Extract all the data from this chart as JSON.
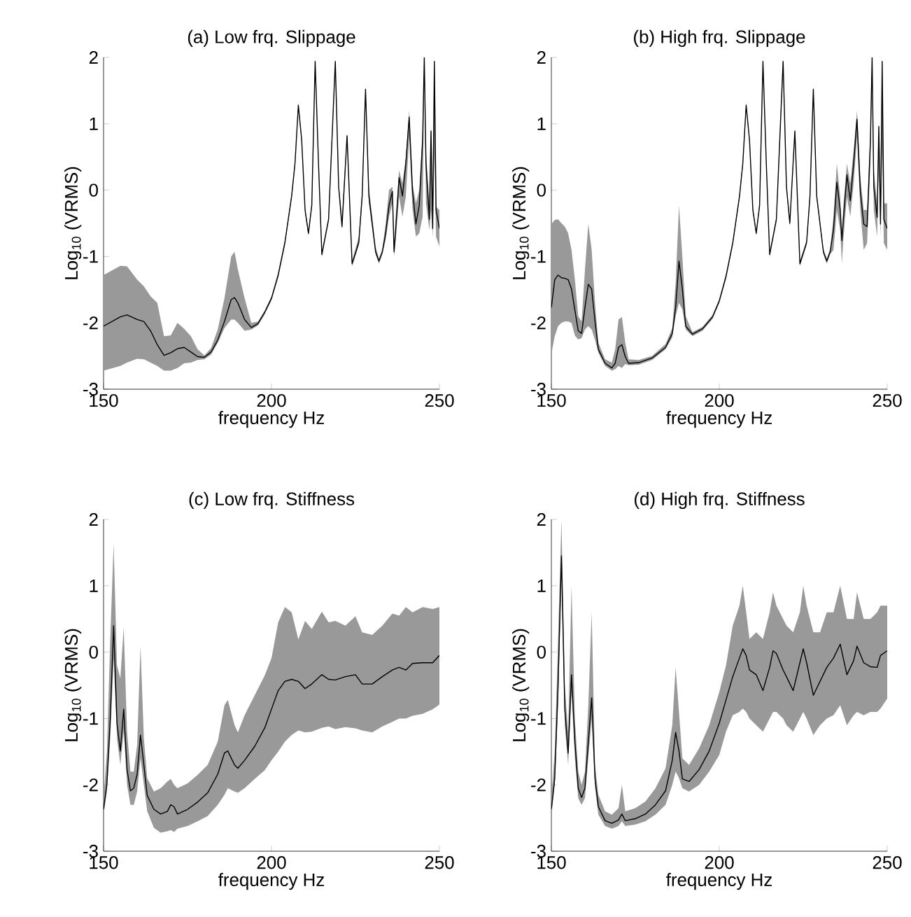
{
  "chart_data": [
    {
      "type": "line",
      "title": "(a) Low frq. Slippage",
      "xlabel": "frequency Hz",
      "ylabel": "Log$_{10}$ (VRMS)",
      "xlim": [
        150,
        250
      ],
      "ylim": [
        -3,
        2
      ],
      "xticks": [
        150,
        200,
        250
      ],
      "yticks": [
        -3,
        -2,
        -1,
        0,
        1,
        2
      ],
      "series": [
        {
          "color": "#000000",
          "x": [
            150,
            155,
            157,
            160,
            162,
            164,
            166,
            168,
            170,
            172,
            174,
            176,
            178,
            180,
            182,
            184,
            186,
            188,
            189,
            190,
            192,
            194,
            196,
            198,
            200,
            202,
            204,
            206,
            207,
            208,
            209,
            210,
            211,
            212,
            213,
            214,
            215,
            217,
            218,
            219,
            220,
            221,
            222.5,
            224,
            226,
            227,
            228,
            229,
            231,
            232,
            233,
            234,
            235,
            236,
            236.5,
            237,
            238,
            239,
            240,
            241,
            242,
            243,
            244,
            245,
            245.5,
            246,
            247,
            247.5,
            248,
            248.5,
            249,
            250
          ],
          "values": [
            -2.05,
            -1.91,
            -1.88,
            -1.95,
            -1.98,
            -2.12,
            -2.33,
            -2.49,
            -2.45,
            -2.39,
            -2.37,
            -2.44,
            -2.51,
            -2.52,
            -2.44,
            -2.26,
            -1.98,
            -1.65,
            -1.62,
            -1.7,
            -1.95,
            -2.07,
            -2.01,
            -1.84,
            -1.63,
            -1.28,
            -0.79,
            -0.09,
            0.4,
            1.28,
            0.75,
            -0.3,
            -0.65,
            -0.23,
            1.94,
            0.4,
            -0.97,
            -0.44,
            0.75,
            1.94,
            0.05,
            -0.55,
            0.82,
            -1.11,
            -0.79,
            -0.09,
            1.52,
            -0.09,
            -0.93,
            -1.07,
            -0.93,
            -0.65,
            -0.23,
            -0.02,
            -0.93,
            -0.58,
            0.19,
            -0.09,
            0.4,
            1.1,
            -0.02,
            -0.51,
            -0.23,
            0.75,
            2.0,
            0.4,
            -0.44,
            0.89,
            -0.58,
            1.94,
            -0.3,
            -0.58
          ],
          "lower": [
            -2.72,
            -2.65,
            -2.6,
            -2.54,
            -2.55,
            -2.6,
            -2.65,
            -2.72,
            -2.72,
            -2.68,
            -2.61,
            -2.6,
            -2.56,
            -2.55,
            -2.48,
            -2.3,
            -2.08,
            -1.95,
            -1.95,
            -2.0,
            -2.12,
            -2.1,
            -2.04,
            -1.87,
            -1.66,
            -1.32,
            -0.83,
            -0.13,
            0.36,
            1.24,
            0.71,
            -0.34,
            -0.69,
            -0.27,
            1.9,
            0.36,
            -1.01,
            -0.48,
            0.71,
            1.9,
            0.01,
            -0.59,
            0.78,
            -1.15,
            -0.83,
            -0.13,
            1.48,
            -0.2,
            -0.97,
            -1.11,
            -0.97,
            -0.75,
            -0.4,
            -0.2,
            -1.0,
            -0.75,
            -0.1,
            -0.4,
            -0.1,
            0.8,
            -0.3,
            -0.7,
            -0.65,
            -0.4,
            1.9,
            -0.2,
            -0.6,
            -0.3,
            -0.7,
            0.5,
            -0.7,
            -0.85
          ],
          "upper": [
            -1.28,
            -1.14,
            -1.15,
            -1.35,
            -1.45,
            -1.6,
            -1.7,
            -2.2,
            -2.19,
            -2.0,
            -2.09,
            -2.2,
            -2.4,
            -2.49,
            -2.38,
            -2.1,
            -1.63,
            -1.0,
            -0.93,
            -1.2,
            -1.63,
            -2.0,
            -1.98,
            -1.81,
            -1.6,
            -1.24,
            -0.75,
            -0.05,
            0.44,
            1.32,
            0.79,
            -0.26,
            -0.61,
            -0.19,
            1.98,
            0.44,
            -0.93,
            -0.4,
            0.85,
            1.98,
            0.09,
            -0.4,
            0.86,
            -1.07,
            -0.7,
            0.0,
            1.56,
            0.05,
            -0.85,
            -1.03,
            -0.89,
            -0.5,
            0.0,
            0.05,
            -0.8,
            -0.4,
            0.3,
            0.1,
            0.5,
            1.2,
            0.1,
            -0.2,
            0.0,
            0.9,
            2.0,
            0.6,
            -0.2,
            1.0,
            -0.3,
            1.98,
            -0.25,
            -0.3
          ]
        }
      ]
    },
    {
      "type": "line",
      "title": "(b) High frq. Slippage",
      "xlabel": "frequency Hz",
      "ylabel": "Log$_{10}$ (VRMS)",
      "xlim": [
        150,
        250
      ],
      "ylim": [
        -3,
        2
      ],
      "xticks": [
        150,
        200,
        250
      ],
      "yticks": [
        -3,
        -2,
        -1,
        0,
        1,
        2
      ],
      "series": [
        {
          "color": "#000000",
          "x": [
            150,
            151,
            152,
            153,
            154,
            155,
            156,
            157,
            158,
            159,
            160,
            161,
            162,
            163,
            164,
            166,
            168,
            169,
            170,
            171,
            172,
            173,
            176,
            180,
            184,
            186,
            187,
            188,
            189,
            190,
            192,
            195,
            198,
            200,
            202,
            204,
            206,
            207,
            208,
            209,
            210,
            211,
            212,
            213,
            214,
            215,
            217,
            218,
            219,
            220,
            221,
            222.5,
            224,
            226,
            227,
            228,
            229,
            231,
            232,
            233,
            234,
            235,
            236,
            236.5,
            237,
            238,
            239,
            240,
            241,
            242,
            243,
            244,
            245,
            245.5,
            246,
            247,
            247.5,
            248,
            248.5,
            249,
            250
          ],
          "values": [
            -1.77,
            -1.35,
            -1.28,
            -1.32,
            -1.33,
            -1.35,
            -1.49,
            -1.81,
            -2.12,
            -2.16,
            -1.77,
            -1.42,
            -1.49,
            -1.98,
            -2.4,
            -2.61,
            -2.68,
            -2.61,
            -2.37,
            -2.33,
            -2.51,
            -2.61,
            -2.6,
            -2.53,
            -2.37,
            -2.16,
            -1.77,
            -1.07,
            -1.49,
            -2.05,
            -2.17,
            -2.09,
            -1.91,
            -1.67,
            -1.3,
            -0.8,
            -0.1,
            0.4,
            1.28,
            0.75,
            -0.3,
            -0.65,
            -0.23,
            1.94,
            0.4,
            -0.97,
            -0.44,
            0.75,
            1.94,
            0.05,
            -0.5,
            0.89,
            -1.11,
            -0.79,
            -0.09,
            1.52,
            -0.09,
            -0.93,
            -1.07,
            -0.93,
            -0.6,
            0.12,
            -0.3,
            -0.76,
            -0.4,
            0.23,
            -0.16,
            0.4,
            1.07,
            -0.02,
            -0.51,
            -0.55,
            0.75,
            2.0,
            0.05,
            -0.41,
            0.96,
            -0.51,
            1.94,
            -0.44,
            -0.58
          ],
          "lower": [
            -2.47,
            -2.2,
            -2.05,
            -2.0,
            -1.98,
            -1.98,
            -2.0,
            -2.19,
            -2.25,
            -2.23,
            -2.1,
            -2.05,
            -2.1,
            -2.26,
            -2.45,
            -2.65,
            -2.72,
            -2.7,
            -2.65,
            -2.68,
            -2.62,
            -2.64,
            -2.63,
            -2.56,
            -2.4,
            -2.22,
            -1.9,
            -1.7,
            -1.8,
            -2.1,
            -2.2,
            -2.12,
            -1.94,
            -1.7,
            -1.34,
            -0.84,
            -0.14,
            0.36,
            1.24,
            0.71,
            -0.34,
            -0.69,
            -0.27,
            1.9,
            0.36,
            -1.01,
            -0.48,
            0.71,
            1.9,
            0.01,
            -0.54,
            0.85,
            -1.15,
            -0.83,
            -0.13,
            1.48,
            -0.13,
            -0.97,
            -1.11,
            -0.97,
            -0.9,
            -0.3,
            -0.6,
            -1.1,
            -0.7,
            -0.1,
            -0.4,
            0.1,
            0.8,
            -0.3,
            -0.9,
            -0.8,
            0.4,
            1.9,
            -0.3,
            -0.7,
            0.5,
            -0.7,
            0.6,
            -0.8,
            -0.9
          ],
          "upper": [
            -0.51,
            -0.45,
            -0.44,
            -0.5,
            -0.55,
            -0.65,
            -0.9,
            -1.35,
            -1.9,
            -1.98,
            -1.2,
            -0.51,
            -0.9,
            -1.7,
            -2.3,
            -2.55,
            -2.6,
            -2.4,
            -1.95,
            -1.91,
            -2.3,
            -2.55,
            -2.56,
            -2.5,
            -2.32,
            -2.08,
            -1.4,
            -0.23,
            -1.0,
            -1.9,
            -2.14,
            -2.06,
            -1.88,
            -1.64,
            -1.26,
            -0.76,
            -0.06,
            0.44,
            1.32,
            0.79,
            -0.26,
            -0.61,
            -0.19,
            1.98,
            0.44,
            -0.93,
            -0.4,
            0.85,
            1.98,
            0.09,
            -0.46,
            0.93,
            -1.07,
            -0.75,
            -0.05,
            1.56,
            -0.05,
            -0.89,
            -1.03,
            -0.89,
            -0.4,
            0.4,
            -0.1,
            -0.6,
            -0.2,
            0.4,
            0.1,
            0.6,
            1.2,
            0.2,
            -0.3,
            -0.3,
            0.9,
            2.0,
            0.3,
            -0.2,
            1.0,
            -0.2,
            1.98,
            -0.2,
            -0.2
          ]
        }
      ]
    },
    {
      "type": "line",
      "title": "(c) Low frq. Stiffness",
      "xlabel": "frequency Hz",
      "ylabel": "Log$_{10}$ (VRMS)",
      "xlim": [
        150,
        250
      ],
      "ylim": [
        -3,
        2
      ],
      "xticks": [
        150,
        200,
        250
      ],
      "yticks": [
        -3,
        -2,
        -1,
        0,
        1,
        2
      ],
      "series": [
        {
          "color": "#000000",
          "x": [
            150,
            151,
            152,
            153,
            154,
            155,
            156,
            157,
            158,
            159,
            160,
            161,
            162,
            163,
            165,
            167,
            169,
            170,
            171,
            172,
            175,
            178,
            181,
            184,
            186,
            187,
            189,
            190,
            192,
            195,
            198,
            200,
            202,
            204,
            206,
            208,
            210,
            212,
            215,
            217,
            219,
            222,
            225,
            227,
            230,
            233,
            236,
            238,
            240,
            242,
            245,
            248,
            250
          ],
          "values": [
            -2.37,
            -1.98,
            -1.0,
            0.4,
            -1.07,
            -1.49,
            -0.86,
            -1.77,
            -2.09,
            -2.05,
            -1.84,
            -1.25,
            -1.7,
            -2.16,
            -2.37,
            -2.44,
            -2.4,
            -2.3,
            -2.33,
            -2.44,
            -2.37,
            -2.26,
            -2.12,
            -1.84,
            -1.52,
            -1.49,
            -1.7,
            -1.75,
            -1.63,
            -1.42,
            -1.14,
            -0.86,
            -0.58,
            -0.44,
            -0.41,
            -0.44,
            -0.55,
            -0.48,
            -0.34,
            -0.41,
            -0.42,
            -0.37,
            -0.34,
            -0.48,
            -0.48,
            -0.37,
            -0.27,
            -0.23,
            -0.27,
            -0.17,
            -0.16,
            -0.16,
            -0.05
          ],
          "lower": [
            -2.45,
            -2.1,
            -1.3,
            -0.1,
            -1.3,
            -1.7,
            -1.2,
            -2.0,
            -2.3,
            -2.3,
            -2.1,
            -1.6,
            -2.0,
            -2.4,
            -2.65,
            -2.72,
            -2.7,
            -2.68,
            -2.71,
            -2.66,
            -2.62,
            -2.55,
            -2.47,
            -2.3,
            -2.15,
            -2.05,
            -2.1,
            -2.12,
            -2.05,
            -1.91,
            -1.78,
            -1.63,
            -1.5,
            -1.35,
            -1.25,
            -1.18,
            -1.21,
            -1.2,
            -1.14,
            -1.12,
            -1.16,
            -1.13,
            -1.15,
            -1.18,
            -1.21,
            -1.12,
            -1.05,
            -1.0,
            -1.0,
            -0.96,
            -0.93,
            -0.86,
            -0.79
          ],
          "upper": [
            -2.2,
            -1.5,
            0.2,
            1.63,
            -0.2,
            -0.4,
            0.38,
            -1.2,
            -1.8,
            -1.8,
            -1.4,
            0.09,
            -1.3,
            -1.9,
            -2.1,
            -2.05,
            -1.95,
            -1.91,
            -2.0,
            -2.05,
            -1.98,
            -1.85,
            -1.7,
            -1.35,
            -0.8,
            -0.72,
            -1.1,
            -1.21,
            -0.95,
            -0.65,
            -0.35,
            -0.09,
            0.45,
            0.68,
            0.6,
            0.19,
            0.47,
            0.35,
            0.61,
            0.45,
            0.47,
            0.4,
            0.54,
            0.3,
            0.26,
            0.4,
            0.58,
            0.55,
            0.68,
            0.6,
            0.68,
            0.65,
            0.68
          ]
        }
      ]
    },
    {
      "type": "line",
      "title": "(d) High frq. Stiffness",
      "xlabel": "frequency Hz",
      "ylabel": "Log$_{10}$ (VRMS)",
      "xlim": [
        150,
        250
      ],
      "ylim": [
        -3,
        2
      ],
      "xticks": [
        150,
        200,
        250
      ],
      "yticks": [
        -3,
        -2,
        -1,
        0,
        1,
        2
      ],
      "series": [
        {
          "color": "#000000",
          "x": [
            150,
            151,
            152,
            153,
            154,
            155,
            156,
            157,
            158,
            159,
            160,
            161,
            162,
            163,
            164,
            166,
            168,
            170,
            171,
            172,
            175,
            178,
            181,
            184,
            186,
            187,
            188,
            189,
            191,
            194,
            197,
            200,
            202,
            204,
            206,
            207,
            208,
            209,
            211,
            213,
            215,
            216,
            217,
            219,
            220,
            222,
            224,
            225,
            226,
            228,
            230,
            232,
            234,
            236,
            238,
            240,
            241,
            243,
            245,
            247,
            248,
            250
          ],
          "values": [
            -2.37,
            -1.91,
            -0.51,
            1.45,
            -0.86,
            -1.52,
            -0.34,
            -1.35,
            -2.05,
            -2.19,
            -2.05,
            -1.35,
            -0.69,
            -1.91,
            -2.33,
            -2.54,
            -2.58,
            -2.53,
            -2.44,
            -2.54,
            -2.51,
            -2.44,
            -2.3,
            -2.09,
            -1.63,
            -1.21,
            -1.49,
            -1.91,
            -1.95,
            -1.77,
            -1.49,
            -1.07,
            -0.72,
            -0.37,
            -0.09,
            0.05,
            -0.05,
            -0.27,
            -0.34,
            -0.58,
            -0.23,
            0.02,
            -0.02,
            -0.27,
            -0.37,
            -0.58,
            -0.16,
            0.05,
            -0.16,
            -0.65,
            -0.44,
            -0.23,
            -0.09,
            0.12,
            -0.34,
            -0.13,
            0.09,
            -0.16,
            -0.22,
            -0.23,
            -0.05,
            0.02
          ],
          "lower": [
            -2.45,
            -2.0,
            -0.8,
            1.2,
            -1.1,
            -1.7,
            -0.6,
            -1.6,
            -2.2,
            -2.3,
            -2.2,
            -1.6,
            -1.0,
            -2.05,
            -2.45,
            -2.62,
            -2.66,
            -2.62,
            -2.55,
            -2.62,
            -2.6,
            -2.55,
            -2.45,
            -2.3,
            -2.0,
            -1.8,
            -1.9,
            -2.05,
            -2.1,
            -2.0,
            -1.8,
            -1.55,
            -1.2,
            -0.95,
            -0.9,
            -0.85,
            -0.9,
            -1.0,
            -1.1,
            -1.2,
            -1.0,
            -0.9,
            -0.9,
            -1.0,
            -1.1,
            -1.2,
            -1.0,
            -0.9,
            -1.0,
            -1.25,
            -1.1,
            -1.0,
            -0.95,
            -0.8,
            -1.1,
            -0.95,
            -0.9,
            -0.95,
            -0.9,
            -0.9,
            -0.85,
            -0.7
          ],
          "upper": [
            -2.2,
            -1.5,
            0.2,
            2.0,
            -0.5,
            -1.2,
            1.0,
            -1.0,
            -1.8,
            -2.0,
            -1.8,
            -0.8,
            0.6,
            -1.7,
            -2.15,
            -2.4,
            -2.45,
            -2.35,
            -2.0,
            -2.4,
            -2.35,
            -2.25,
            -2.05,
            -1.75,
            -1.1,
            -0.23,
            -0.9,
            -1.6,
            -1.7,
            -1.45,
            -1.1,
            -0.6,
            -0.2,
            0.4,
            0.7,
            1.0,
            0.6,
            0.2,
            0.3,
            0.2,
            0.6,
            0.9,
            0.7,
            0.5,
            0.4,
            0.3,
            0.6,
            1.0,
            0.7,
            0.3,
            0.3,
            0.6,
            0.6,
            1.0,
            0.5,
            0.5,
            0.9,
            0.5,
            0.5,
            0.6,
            0.7,
            0.7
          ]
        }
      ]
    }
  ]
}
